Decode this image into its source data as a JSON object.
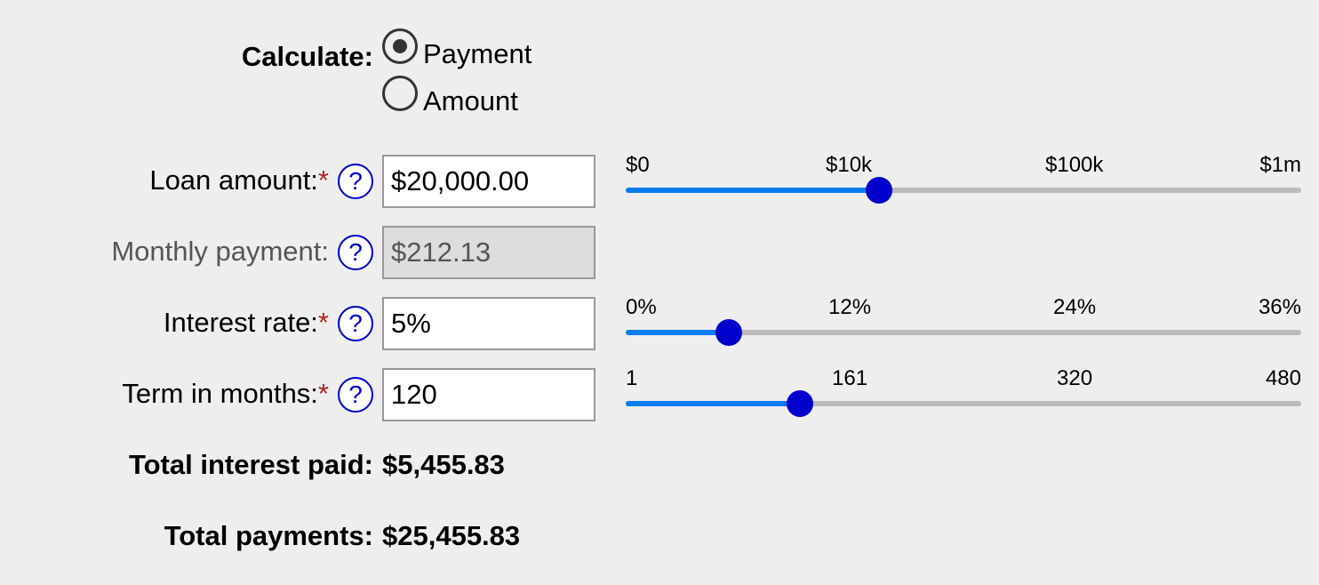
{
  "calculate": {
    "label": "Calculate:",
    "options": [
      {
        "label": "Payment",
        "selected": true
      },
      {
        "label": "Amount",
        "selected": false
      }
    ]
  },
  "fields": {
    "loan_amount": {
      "label": "Loan amount:",
      "required_mark": "*",
      "help": "?",
      "value": "$20,000.00"
    },
    "monthly_payment": {
      "label": "Monthly payment:",
      "help": "?",
      "value": "$212.13"
    },
    "interest_rate": {
      "label": "Interest rate:",
      "required_mark": "*",
      "help": "?",
      "value": "5%"
    },
    "term_months": {
      "label": "Term in months:",
      "required_mark": "*",
      "help": "?",
      "value": "120"
    }
  },
  "sliders": {
    "loan_amount": {
      "ticks": [
        "$0",
        "$10k",
        "$100k",
        "$1m"
      ],
      "position": 0.375
    },
    "interest_rate": {
      "ticks": [
        "0%",
        "12%",
        "24%",
        "36%"
      ],
      "position": 0.152
    },
    "term_months": {
      "ticks": [
        "1",
        "161",
        "320",
        "480"
      ],
      "position": 0.257
    }
  },
  "results": {
    "total_interest": {
      "label": "Total interest paid:",
      "value": "$5,455.83"
    },
    "total_payments": {
      "label": "Total payments:",
      "value": "$25,455.83"
    }
  },
  "colors": {
    "slider_fill": "#0a7cf0",
    "slider_thumb": "#0000cc",
    "required": "#b22222",
    "help": "#0000cc"
  }
}
